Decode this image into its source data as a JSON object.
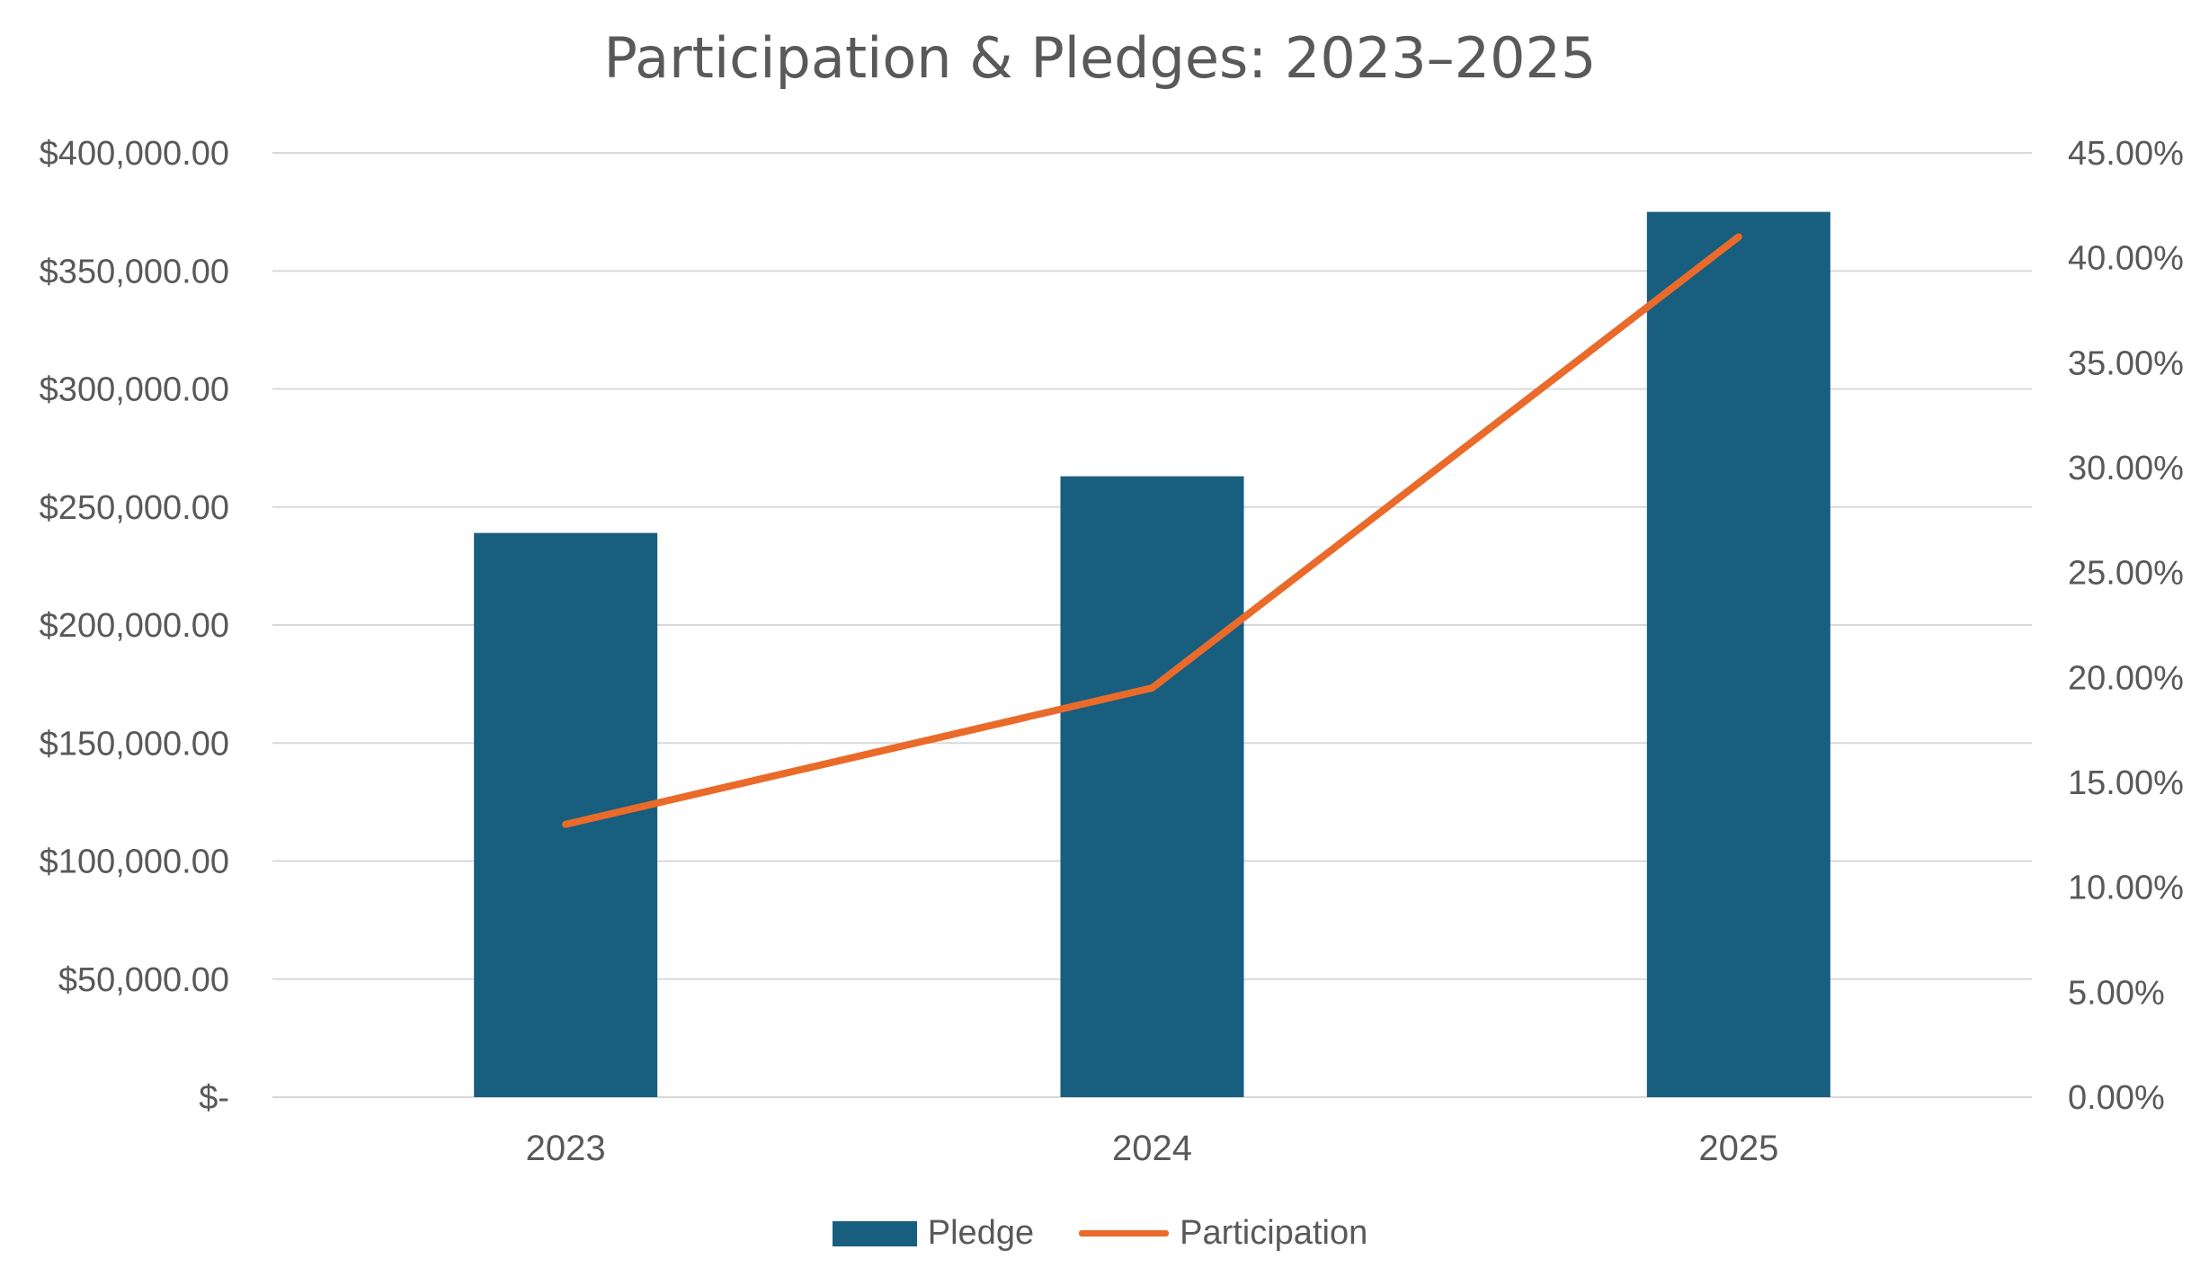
{
  "chart_data": {
    "type": "bar",
    "title": "Participation & Pledges: 2023–2025",
    "categories": [
      "2023",
      "2024",
      "2025"
    ],
    "series": [
      {
        "name": "Pledge",
        "type": "bar",
        "axis": "left",
        "values": [
          239000,
          263000,
          375000
        ]
      },
      {
        "name": "Participation",
        "type": "line",
        "axis": "right",
        "values": [
          0.13,
          0.195,
          0.41
        ]
      }
    ],
    "y_left": {
      "ylim": [
        0,
        400000
      ],
      "ticks": [
        0,
        50000,
        100000,
        150000,
        200000,
        250000,
        300000,
        350000,
        400000
      ],
      "tick_labels": [
        "$-",
        "$50,000.00",
        "$100,000.00",
        "$150,000.00",
        "$200,000.00",
        "$250,000.00",
        "$300,000.00",
        "$350,000.00",
        "$400,000.00"
      ]
    },
    "y_right": {
      "ylim": [
        0,
        0.45
      ],
      "ticks": [
        0,
        0.05,
        0.1,
        0.15,
        0.2,
        0.25,
        0.3,
        0.35,
        0.4,
        0.45
      ],
      "tick_labels": [
        "0.00%",
        "5.00%",
        "10.00%",
        "15.00%",
        "20.00%",
        "25.00%",
        "30.00%",
        "35.00%",
        "40.00%",
        "45.00%"
      ]
    },
    "xlabel": "",
    "ylabel": "",
    "grid": true,
    "legend_position": "bottom"
  },
  "colors": {
    "bar": "#175e7f",
    "line": "#ea6a2a",
    "grid": "#d9d9d9",
    "text": "#595959"
  }
}
